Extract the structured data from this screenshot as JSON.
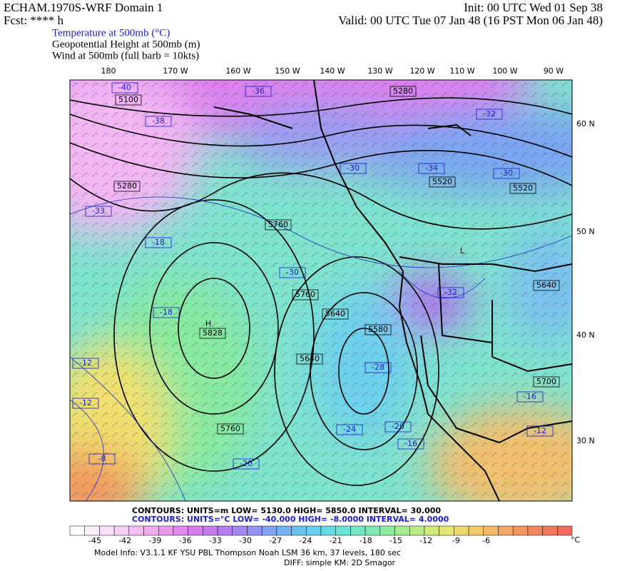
{
  "header": {
    "title": "ECHAM.1970S-WRF Domain 1",
    "forecast": "Fcst: **** h",
    "init": "Init: 00 UTC Wed 01 Sep 38",
    "valid": "Valid: 00 UTC Tue 07 Jan 48 (16 PST Mon 06 Jan 48)",
    "fields": [
      "Temperature at 500mb (°C)",
      "Geopotential Height at 500mb (m)",
      "Wind at 500mb (full barb = 10kts)"
    ]
  },
  "map": {
    "longitude_labels": [
      "180",
      "170 W",
      "160 W",
      "150 W",
      "140 W",
      "130 W",
      "120 W",
      "110 W",
      "100 W",
      "90 W"
    ],
    "latitude_labels": [
      "60 N",
      "50 N",
      "40 N",
      "30 N"
    ],
    "contour_labels": [
      "-40",
      "5100",
      "-38",
      "-36",
      "5280",
      "-32",
      "-34",
      "5520",
      "-30",
      "5520",
      "-30",
      "5280",
      "-33",
      "-18",
      "5760",
      "-30",
      "5760",
      "-18",
      "H",
      "5828",
      "5640",
      "5580",
      "-28",
      "5640",
      "-12",
      "-12",
      "5760",
      "-24",
      "-20",
      "-16",
      "-20",
      "-8",
      "L",
      "-32",
      "5640",
      "5700",
      "-16",
      "-12"
    ]
  },
  "footer": {
    "height_contours": "CONTOURS:  UNITS=m   LOW=   5130.0      HIGH=  5850.0      INTERVAL=    30.000",
    "temperature_contours": "CONTOURS:  UNITS=°C  LOW= -40.000    HIGH= -8.0000    INTERVAL=   4.0000",
    "colorbar_labels": [
      "-45",
      "-42",
      "-39",
      "-36",
      "-33",
      "-30",
      "-27",
      "-24",
      "-21",
      "-18",
      "-15",
      "-12",
      "-9",
      "-6"
    ],
    "colorbar_unit": "°C",
    "model_info": "Model Info: V3.1.1    KF      YSU PBL   Thompson     Noah LSM   36 km,    37 levels,   180 sec",
    "diff_info": "DIFF: simple KM: 2D Smagor"
  }
}
